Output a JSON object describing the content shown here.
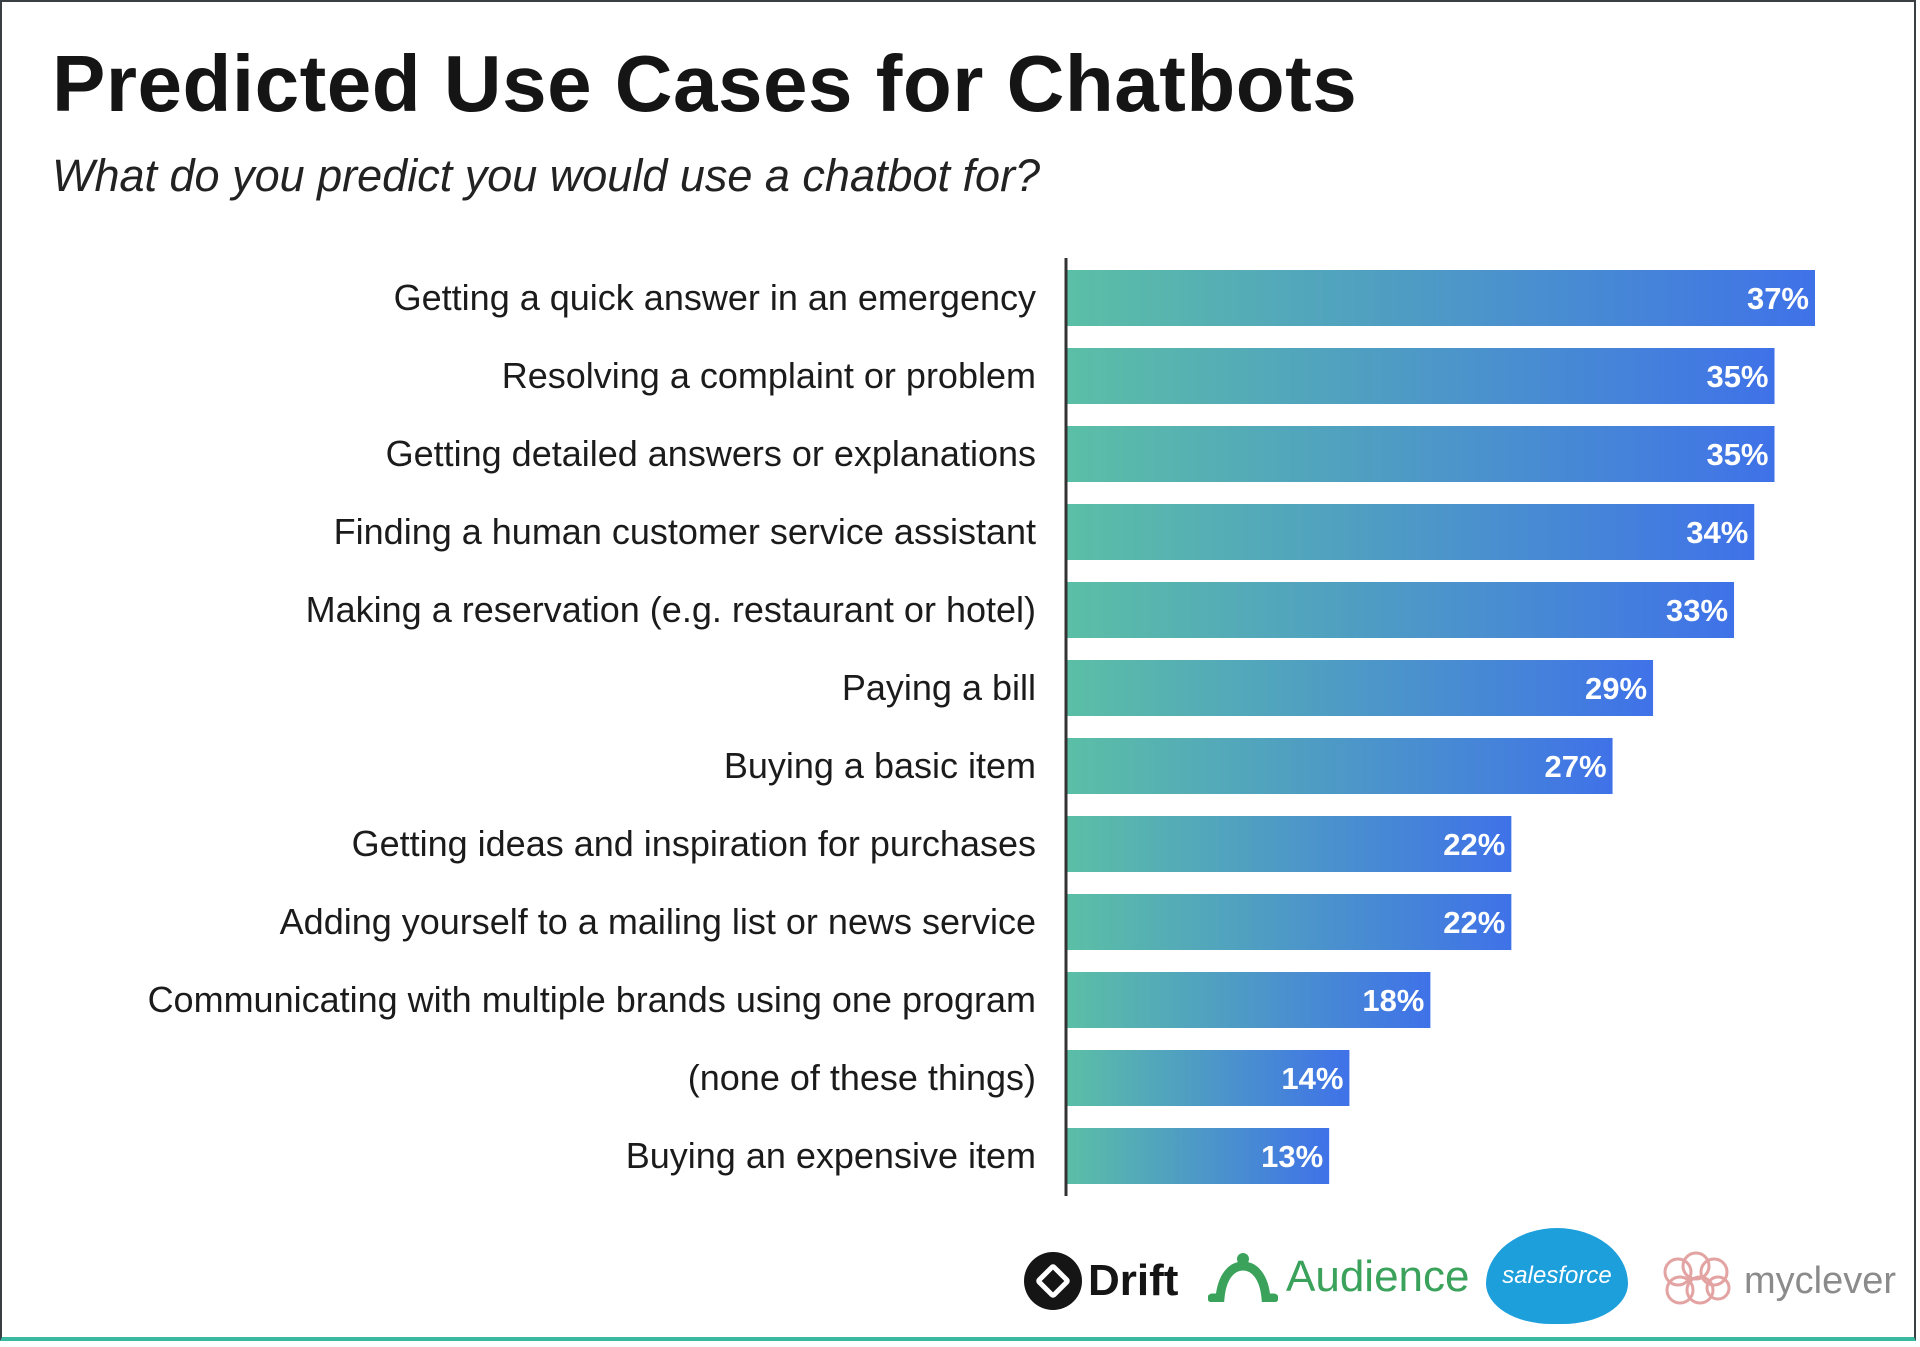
{
  "chart_data": {
    "type": "bar",
    "orientation": "horizontal",
    "title": "Predicted Use Cases for Chatbots",
    "subtitle": "What do you predict you would use a chatbot for?",
    "categories": [
      "Getting a quick answer in an emergency",
      "Resolving a complaint or problem",
      "Getting detailed answers or explanations",
      "Finding a human customer service assistant",
      "Making a reservation (e.g. restaurant or hotel)",
      "Paying a bill",
      "Buying a basic item",
      "Getting ideas and inspiration for purchases",
      "Adding yourself to a mailing list or news service",
      "Communicating with multiple brands using one program",
      "(none of these things)",
      "Buying an expensive item"
    ],
    "values": [
      37,
      35,
      35,
      34,
      33,
      29,
      27,
      22,
      22,
      18,
      14,
      13
    ],
    "value_labels": [
      "37%",
      "35%",
      "35%",
      "34%",
      "33%",
      "29%",
      "27%",
      "22%",
      "22%",
      "18%",
      "14%",
      "13%"
    ],
    "unit": "%",
    "xlim": [
      0,
      37
    ],
    "grid": false,
    "legend": "none",
    "colors": {
      "gradient_start": "#5bbfa6",
      "gradient_end": "#3f72e8"
    }
  },
  "logos": {
    "drift": "Drift",
    "audience": "Audience",
    "salesforce": "salesforce",
    "myclever": "myclever"
  }
}
